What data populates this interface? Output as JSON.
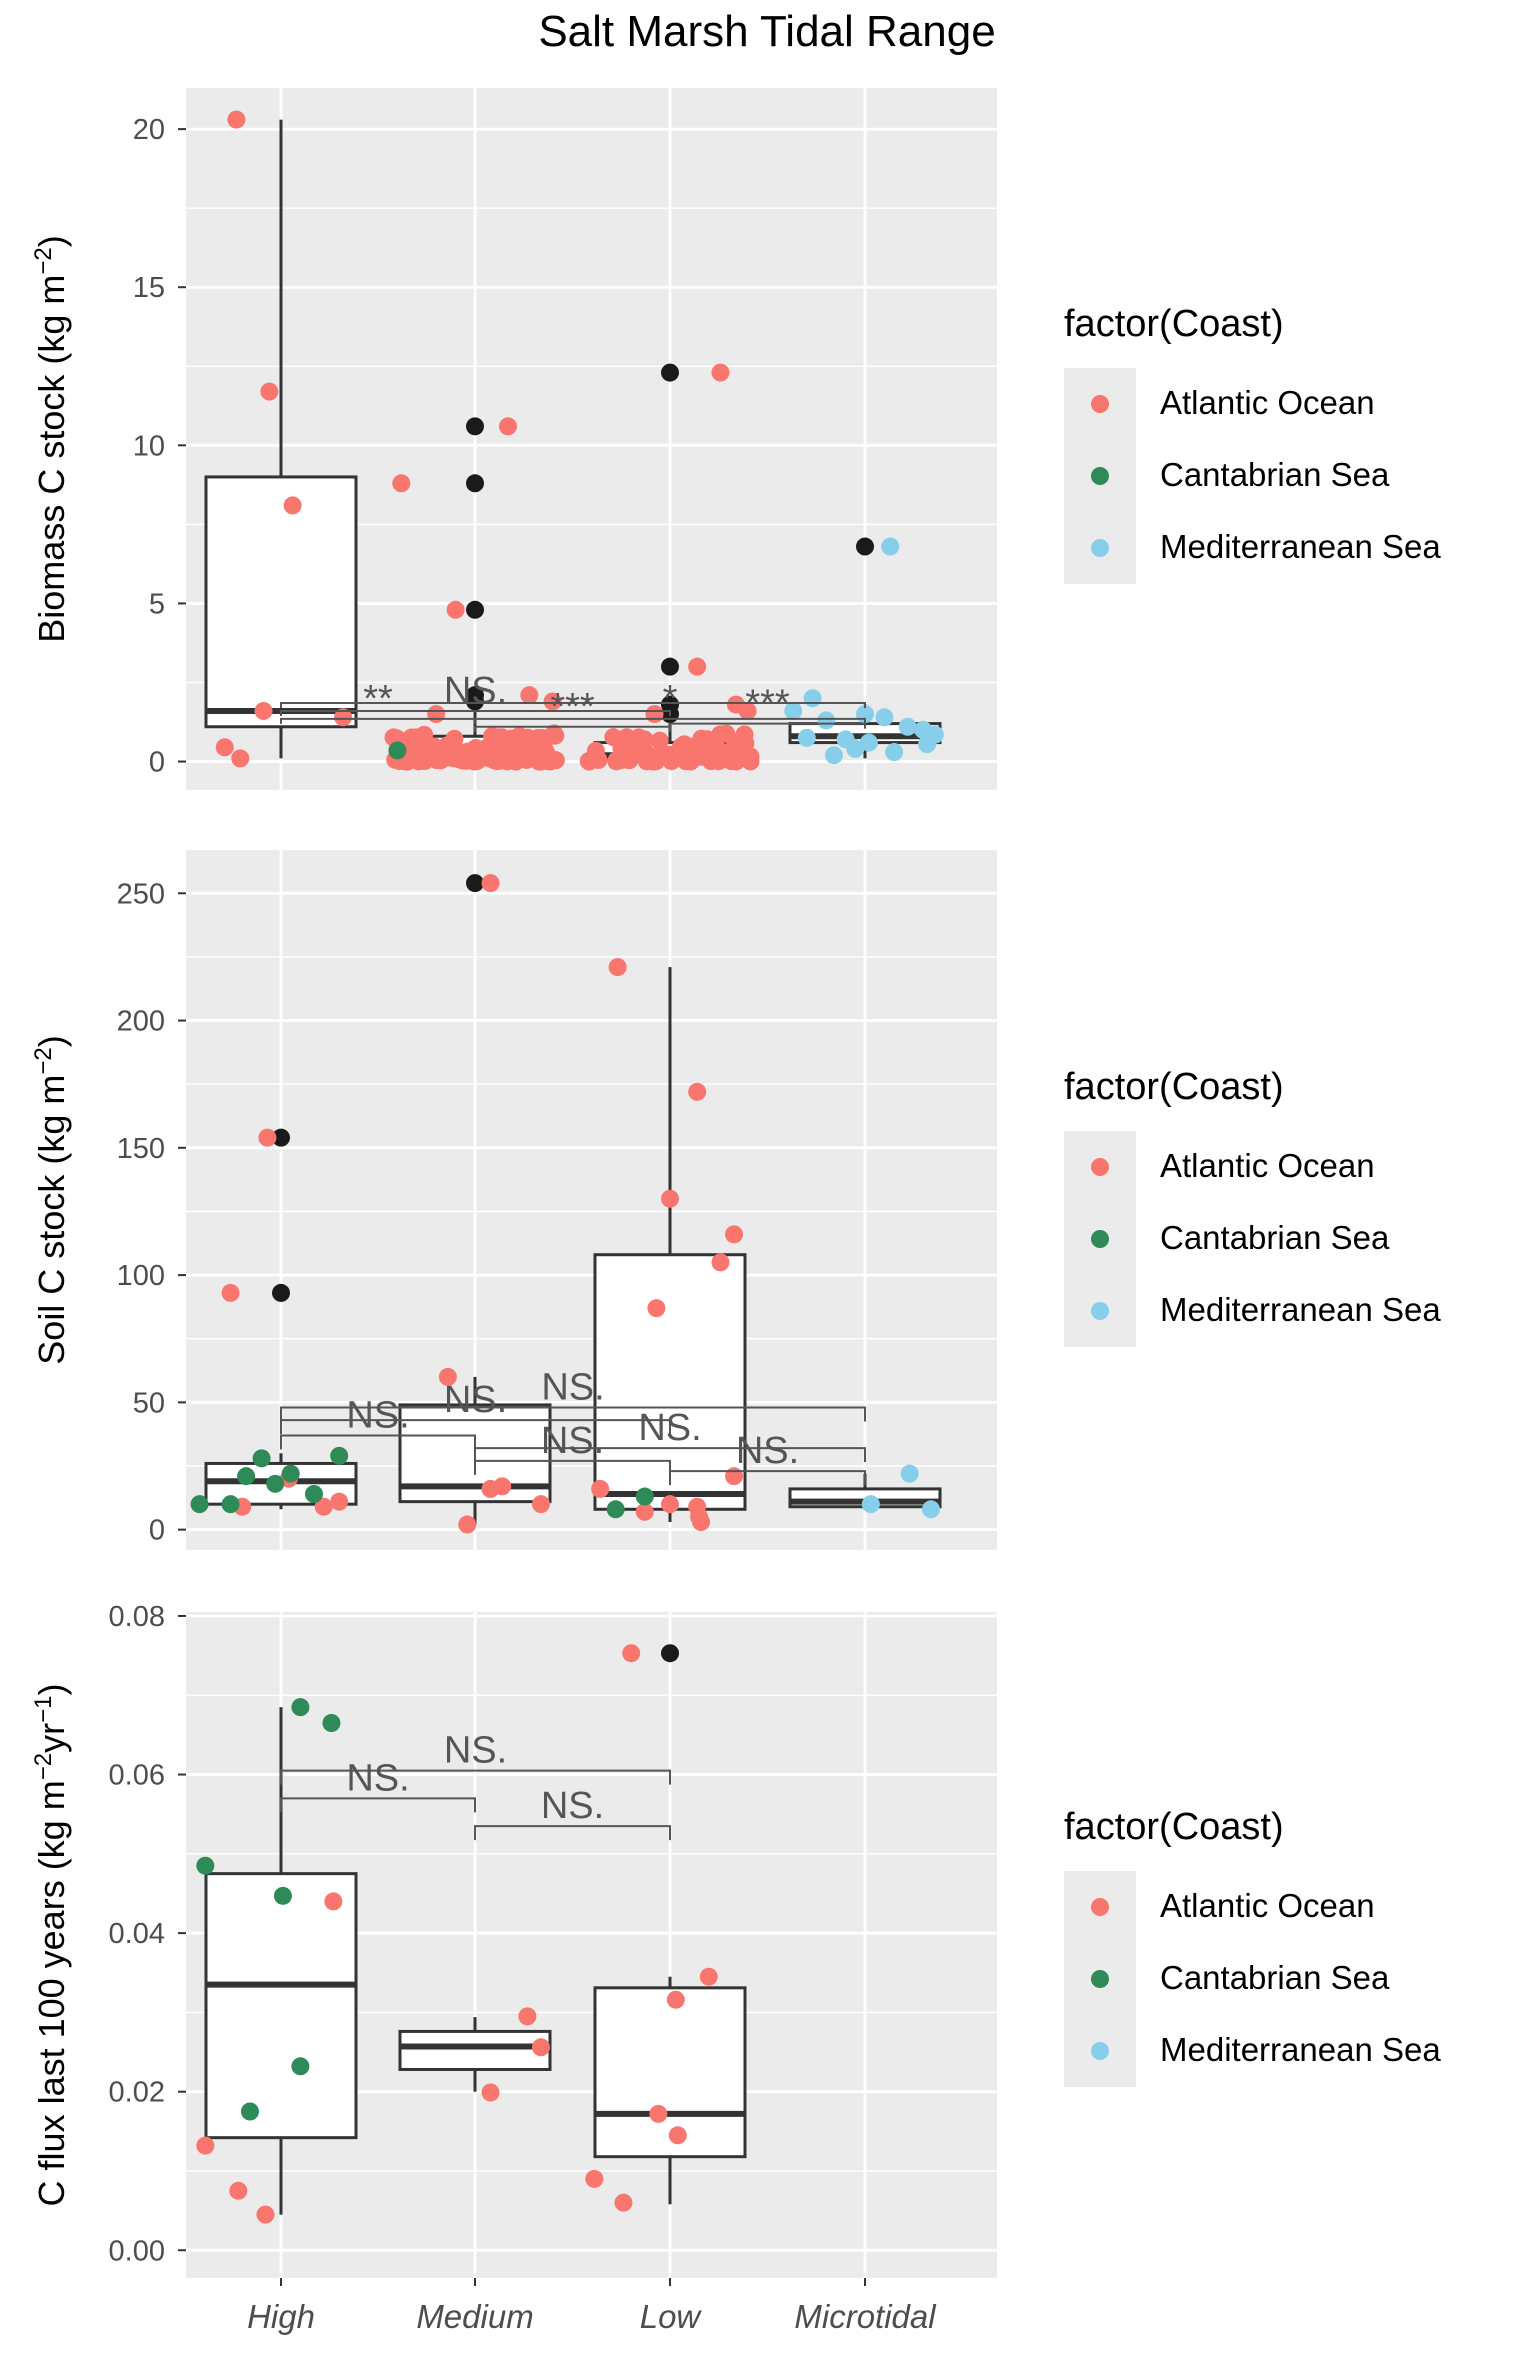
{
  "figure": {
    "title": "Salt Marsh Tidal Range",
    "x_categories": [
      "High",
      "Medium",
      "Low",
      "Microtidal"
    ]
  },
  "colors": {
    "Atlantic Ocean": "#F8766D",
    "Cantabrian Sea": "#2E8B57",
    "Mediterranean Sea": "#87CEEB",
    "outlier": "#1a1a1a",
    "panel_bg": "#EBEBEB",
    "grid": "#FFFFFF"
  },
  "legend": {
    "title": "factor(Coast)",
    "entries": [
      "Atlantic Ocean",
      "Cantabrian Sea",
      "Mediterranean Sea"
    ]
  },
  "chart_data": [
    {
      "type": "box",
      "title": "Salt Marsh Tidal Range",
      "ylabel": "Biomass C stock (kg m⁻²)",
      "ylabel_parts": [
        "Biomass C stock (kg m",
        "−2",
        ")"
      ],
      "ylim": [
        -0.9,
        21.3
      ],
      "yticks": [
        0,
        5,
        10,
        15,
        20
      ],
      "tick_labels": [
        "0",
        "5",
        "10",
        "15",
        "20"
      ],
      "categories": [
        "High",
        "Medium",
        "Low",
        "Microtidal"
      ],
      "boxes": [
        {
          "category": "High",
          "min": 0.1,
          "q1": 1.1,
          "median": 1.6,
          "q3": 9.0,
          "max": 20.3,
          "outliers": []
        },
        {
          "category": "Medium",
          "min": 0.0,
          "q1": 0.1,
          "median": 0.3,
          "q3": 0.8,
          "max": 1.8,
          "outliers": [
            2.1,
            1.9,
            4.8,
            8.8,
            10.6
          ]
        },
        {
          "category": "Low",
          "min": 0.0,
          "q1": 0.1,
          "median": 0.2,
          "q3": 0.6,
          "max": 1.3,
          "outliers": [
            1.5,
            1.8,
            3.0,
            12.3
          ]
        },
        {
          "category": "Microtidal",
          "min": 0.1,
          "q1": 0.6,
          "median": 0.8,
          "q3": 1.2,
          "max": 1.8,
          "outliers": [
            6.8
          ]
        }
      ],
      "points": [
        {
          "cat": "High",
          "off": -0.23,
          "y": 20.3,
          "coast": "Atlantic Ocean"
        },
        {
          "cat": "High",
          "off": -0.06,
          "y": 11.7,
          "coast": "Atlantic Ocean"
        },
        {
          "cat": "High",
          "off": 0.06,
          "y": 8.1,
          "coast": "Atlantic Ocean"
        },
        {
          "cat": "High",
          "off": -0.09,
          "y": 1.6,
          "coast": "Atlantic Ocean"
        },
        {
          "cat": "High",
          "off": 0.32,
          "y": 1.4,
          "coast": "Atlantic Ocean"
        },
        {
          "cat": "High",
          "off": -0.29,
          "y": 0.45,
          "coast": "Atlantic Ocean"
        },
        {
          "cat": "High",
          "off": -0.21,
          "y": 0.1,
          "coast": "Atlantic Ocean"
        },
        {
          "cat": "Medium",
          "off": -0.38,
          "y": 8.8,
          "coast": "Atlantic Ocean"
        },
        {
          "cat": "Medium",
          "off": -0.1,
          "y": 4.8,
          "coast": "Atlantic Ocean"
        },
        {
          "cat": "Medium",
          "off": 0.17,
          "y": 10.6,
          "coast": "Atlantic Ocean"
        },
        {
          "cat": "Medium",
          "off": 0.28,
          "y": 2.1,
          "coast": "Atlantic Ocean"
        },
        {
          "cat": "Medium",
          "off": 0.4,
          "y": 1.9,
          "coast": "Atlantic Ocean"
        },
        {
          "cat": "Medium",
          "off": -0.2,
          "y": 1.5,
          "coast": "Atlantic Ocean"
        },
        {
          "cat": "Medium",
          "off": -0.4,
          "y": 0.35,
          "coast": "Cantabrian Sea"
        },
        {
          "cat": "Low",
          "off": 0.26,
          "y": 12.3,
          "coast": "Atlantic Ocean"
        },
        {
          "cat": "Low",
          "off": 0.14,
          "y": 3.0,
          "coast": "Atlantic Ocean"
        },
        {
          "cat": "Low",
          "off": -0.08,
          "y": 1.5,
          "coast": "Atlantic Ocean"
        },
        {
          "cat": "Low",
          "off": 0.34,
          "y": 1.8,
          "coast": "Atlantic Ocean"
        },
        {
          "cat": "Low",
          "off": 0.4,
          "y": 1.6,
          "coast": "Atlantic Ocean"
        },
        {
          "cat": "Microtidal",
          "off": 0.13,
          "y": 6.8,
          "coast": "Mediterranean Sea"
        },
        {
          "cat": "Microtidal",
          "off": -0.37,
          "y": 1.6,
          "coast": "Mediterranean Sea"
        },
        {
          "cat": "Microtidal",
          "off": -0.27,
          "y": 2.0,
          "coast": "Mediterranean Sea"
        },
        {
          "cat": "Microtidal",
          "off": -0.2,
          "y": 1.3,
          "coast": "Mediterranean Sea"
        },
        {
          "cat": "Microtidal",
          "off": 0.0,
          "y": 1.5,
          "coast": "Mediterranean Sea"
        },
        {
          "cat": "Microtidal",
          "off": 0.1,
          "y": 1.4,
          "coast": "Mediterranean Sea"
        },
        {
          "cat": "Microtidal",
          "off": 0.22,
          "y": 1.1,
          "coast": "Mediterranean Sea"
        },
        {
          "cat": "Microtidal",
          "off": 0.3,
          "y": 1.0,
          "coast": "Mediterranean Sea"
        },
        {
          "cat": "Microtidal",
          "off": 0.36,
          "y": 0.85,
          "coast": "Mediterranean Sea"
        },
        {
          "cat": "Microtidal",
          "off": -0.1,
          "y": 0.7,
          "coast": "Mediterranean Sea"
        },
        {
          "cat": "Microtidal",
          "off": 0.02,
          "y": 0.6,
          "coast": "Mediterranean Sea"
        },
        {
          "cat": "Microtidal",
          "off": -0.3,
          "y": 0.75,
          "coast": "Mediterranean Sea"
        },
        {
          "cat": "Microtidal",
          "off": 0.15,
          "y": 0.3,
          "coast": "Mediterranean Sea"
        },
        {
          "cat": "Microtidal",
          "off": -0.16,
          "y": 0.2,
          "coast": "Mediterranean Sea"
        },
        {
          "cat": "Microtidal",
          "off": -0.05,
          "y": 0.4,
          "coast": "Mediterranean Sea"
        },
        {
          "cat": "Microtidal",
          "off": 0.32,
          "y": 0.55,
          "coast": "Mediterranean Sea"
        }
      ],
      "dense_clusters": [
        {
          "cat": "Medium",
          "coast": "Atlantic Ocean",
          "n": 110,
          "ymin": 0.0,
          "ymax": 0.9,
          "spread": 0.42
        },
        {
          "cat": "Low",
          "coast": "Atlantic Ocean",
          "n": 70,
          "ymin": 0.0,
          "ymax": 0.9,
          "spread": 0.42
        }
      ],
      "comparisons": [
        {
          "from": "High",
          "to": "Medium",
          "y": 1.35,
          "label": "**"
        },
        {
          "from": "High",
          "to": "Low",
          "y": 1.6,
          "label": "NS."
        },
        {
          "from": "High",
          "to": "Microtidal",
          "y": 1.85,
          "label": ""
        },
        {
          "from": "Medium",
          "to": "Low",
          "y": 1.1,
          "label": "***"
        },
        {
          "from": "Medium",
          "to": "Microtidal",
          "y": 1.35,
          "label": "*"
        },
        {
          "from": "Low",
          "to": "Microtidal",
          "y": 1.2,
          "label": "***"
        }
      ]
    },
    {
      "type": "box",
      "ylabel": "Soil C stock (kg m⁻²)",
      "ylabel_parts": [
        "Soil C stock (kg m",
        "−2",
        ")"
      ],
      "ylim": [
        -8,
        267
      ],
      "yticks": [
        0,
        50,
        100,
        150,
        200,
        250
      ],
      "tick_labels": [
        "0",
        "50",
        "100",
        "150",
        "200",
        "250"
      ],
      "categories": [
        "High",
        "Medium",
        "Low",
        "Microtidal"
      ],
      "boxes": [
        {
          "category": "High",
          "min": 8,
          "q1": 10,
          "median": 19,
          "q3": 26,
          "max": 30,
          "outliers": [
            93,
            154
          ]
        },
        {
          "category": "Medium",
          "min": 2,
          "q1": 11,
          "median": 17,
          "q3": 49,
          "max": 60,
          "outliers": [
            254
          ]
        },
        {
          "category": "Low",
          "min": 3,
          "q1": 8,
          "median": 14,
          "q3": 108,
          "max": 221,
          "outliers": []
        },
        {
          "category": "Microtidal",
          "min": 8,
          "q1": 9,
          "median": 11,
          "q3": 16,
          "max": 22,
          "outliers": []
        }
      ],
      "points": [
        {
          "cat": "High",
          "off": -0.26,
          "y": 93,
          "coast": "Atlantic Ocean"
        },
        {
          "cat": "High",
          "off": -0.07,
          "y": 154,
          "coast": "Atlantic Ocean"
        },
        {
          "cat": "High",
          "off": -0.2,
          "y": 9,
          "coast": "Atlantic Ocean"
        },
        {
          "cat": "High",
          "off": 0.04,
          "y": 20,
          "coast": "Atlantic Ocean"
        },
        {
          "cat": "High",
          "off": 0.22,
          "y": 9,
          "coast": "Atlantic Ocean"
        },
        {
          "cat": "High",
          "off": 0.3,
          "y": 11,
          "coast": "Atlantic Ocean"
        },
        {
          "cat": "High",
          "off": -0.42,
          "y": 10,
          "coast": "Cantabrian Sea"
        },
        {
          "cat": "High",
          "off": -0.26,
          "y": 10,
          "coast": "Cantabrian Sea"
        },
        {
          "cat": "High",
          "off": -0.18,
          "y": 21,
          "coast": "Cantabrian Sea"
        },
        {
          "cat": "High",
          "off": -0.1,
          "y": 28,
          "coast": "Cantabrian Sea"
        },
        {
          "cat": "High",
          "off": -0.03,
          "y": 18,
          "coast": "Cantabrian Sea"
        },
        {
          "cat": "High",
          "off": 0.05,
          "y": 22,
          "coast": "Cantabrian Sea"
        },
        {
          "cat": "High",
          "off": 0.17,
          "y": 14,
          "coast": "Cantabrian Sea"
        },
        {
          "cat": "High",
          "off": 0.3,
          "y": 29,
          "coast": "Cantabrian Sea"
        },
        {
          "cat": "Medium",
          "off": 0.08,
          "y": 254,
          "coast": "Atlantic Ocean"
        },
        {
          "cat": "Medium",
          "off": -0.14,
          "y": 60,
          "coast": "Atlantic Ocean"
        },
        {
          "cat": "Medium",
          "off": -0.04,
          "y": 2,
          "coast": "Atlantic Ocean"
        },
        {
          "cat": "Medium",
          "off": 0.08,
          "y": 16,
          "coast": "Atlantic Ocean"
        },
        {
          "cat": "Medium",
          "off": 0.14,
          "y": 17,
          "coast": "Atlantic Ocean"
        },
        {
          "cat": "Medium",
          "off": 0.34,
          "y": 10,
          "coast": "Atlantic Ocean"
        },
        {
          "cat": "Low",
          "off": -0.27,
          "y": 221,
          "coast": "Atlantic Ocean"
        },
        {
          "cat": "Low",
          "off": 0.14,
          "y": 172,
          "coast": "Atlantic Ocean"
        },
        {
          "cat": "Low",
          "off": 0.0,
          "y": 130,
          "coast": "Atlantic Ocean"
        },
        {
          "cat": "Low",
          "off": 0.33,
          "y": 116,
          "coast": "Atlantic Ocean"
        },
        {
          "cat": "Low",
          "off": 0.26,
          "y": 105,
          "coast": "Atlantic Ocean"
        },
        {
          "cat": "Low",
          "off": -0.07,
          "y": 87,
          "coast": "Atlantic Ocean"
        },
        {
          "cat": "Low",
          "off": -0.36,
          "y": 16,
          "coast": "Atlantic Ocean"
        },
        {
          "cat": "Low",
          "off": 0.33,
          "y": 21,
          "coast": "Atlantic Ocean"
        },
        {
          "cat": "Low",
          "off": -0.13,
          "y": 7,
          "coast": "Atlantic Ocean"
        },
        {
          "cat": "Low",
          "off": 0.0,
          "y": 10,
          "coast": "Atlantic Ocean"
        },
        {
          "cat": "Low",
          "off": 0.14,
          "y": 9,
          "coast": "Atlantic Ocean"
        },
        {
          "cat": "Low",
          "off": 0.15,
          "y": 5,
          "coast": "Atlantic Ocean"
        },
        {
          "cat": "Low",
          "off": 0.16,
          "y": 3,
          "coast": "Atlantic Ocean"
        },
        {
          "cat": "Low",
          "off": -0.28,
          "y": 8,
          "coast": "Cantabrian Sea"
        },
        {
          "cat": "Low",
          "off": -0.13,
          "y": 13,
          "coast": "Cantabrian Sea"
        },
        {
          "cat": "Microtidal",
          "off": 0.03,
          "y": 10,
          "coast": "Mediterranean Sea"
        },
        {
          "cat": "Microtidal",
          "off": 0.23,
          "y": 22,
          "coast": "Mediterranean Sea"
        },
        {
          "cat": "Microtidal",
          "off": 0.34,
          "y": 8,
          "coast": "Mediterranean Sea"
        }
      ],
      "dense_clusters": [],
      "comparisons": [
        {
          "from": "High",
          "to": "Medium",
          "y": 37,
          "label": "NS."
        },
        {
          "from": "High",
          "to": "Low",
          "y": 43,
          "label": "NS."
        },
        {
          "from": "High",
          "to": "Microtidal",
          "y": 48,
          "label": "NS."
        },
        {
          "from": "Medium",
          "to": "Low",
          "y": 27,
          "label": "NS."
        },
        {
          "from": "Medium",
          "to": "Microtidal",
          "y": 32,
          "label": "NS."
        },
        {
          "from": "Low",
          "to": "Microtidal",
          "y": 23,
          "label": "NS."
        }
      ]
    },
    {
      "type": "box",
      "ylabel": "C flux last 100 years (kg m⁻²yr⁻¹)",
      "ylabel_parts": [
        "C flux last 100 years (kg m",
        "−2",
        "yr",
        "−1",
        ")"
      ],
      "ylim": [
        -0.0035,
        0.0805
      ],
      "yticks": [
        0,
        0.02,
        0.04,
        0.06,
        0.08
      ],
      "tick_labels": [
        "0.00",
        "0.02",
        "0.04",
        "0.06",
        "0.08"
      ],
      "categories": [
        "High",
        "Medium",
        "Low",
        "Microtidal"
      ],
      "boxes": [
        {
          "category": "High",
          "min": 0.0045,
          "q1": 0.0142,
          "median": 0.0335,
          "q3": 0.0475,
          "max": 0.0685,
          "outliers": []
        },
        {
          "category": "Medium",
          "min": 0.02,
          "q1": 0.0228,
          "median": 0.0257,
          "q3": 0.0276,
          "max": 0.0294,
          "outliers": []
        },
        {
          "category": "Low",
          "min": 0.0058,
          "q1": 0.0118,
          "median": 0.0172,
          "q3": 0.0331,
          "max": 0.0345,
          "outliers": [
            0.0753
          ]
        },
        {
          "category": "Microtidal",
          "outliers": []
        }
      ],
      "points": [
        {
          "cat": "High",
          "off": -0.39,
          "y": 0.0485,
          "coast": "Cantabrian Sea"
        },
        {
          "cat": "High",
          "off": 0.1,
          "y": 0.0685,
          "coast": "Cantabrian Sea"
        },
        {
          "cat": "High",
          "off": 0.26,
          "y": 0.0665,
          "coast": "Cantabrian Sea"
        },
        {
          "cat": "High",
          "off": 0.01,
          "y": 0.0447,
          "coast": "Cantabrian Sea"
        },
        {
          "cat": "High",
          "off": 0.1,
          "y": 0.0232,
          "coast": "Cantabrian Sea"
        },
        {
          "cat": "High",
          "off": -0.16,
          "y": 0.0175,
          "coast": "Cantabrian Sea"
        },
        {
          "cat": "High",
          "off": 0.27,
          "y": 0.044,
          "coast": "Atlantic Ocean"
        },
        {
          "cat": "High",
          "off": -0.39,
          "y": 0.0132,
          "coast": "Atlantic Ocean"
        },
        {
          "cat": "High",
          "off": -0.22,
          "y": 0.0075,
          "coast": "Atlantic Ocean"
        },
        {
          "cat": "High",
          "off": -0.08,
          "y": 0.0045,
          "coast": "Atlantic Ocean"
        },
        {
          "cat": "Medium",
          "off": 0.27,
          "y": 0.0295,
          "coast": "Atlantic Ocean"
        },
        {
          "cat": "Medium",
          "off": 0.34,
          "y": 0.0256,
          "coast": "Atlantic Ocean"
        },
        {
          "cat": "Medium",
          "off": 0.08,
          "y": 0.0199,
          "coast": "Atlantic Ocean"
        },
        {
          "cat": "Low",
          "off": -0.2,
          "y": 0.0753,
          "coast": "Atlantic Ocean"
        },
        {
          "cat": "Low",
          "off": 0.2,
          "y": 0.0345,
          "coast": "Atlantic Ocean"
        },
        {
          "cat": "Low",
          "off": 0.03,
          "y": 0.0316,
          "coast": "Atlantic Ocean"
        },
        {
          "cat": "Low",
          "off": -0.06,
          "y": 0.0172,
          "coast": "Atlantic Ocean"
        },
        {
          "cat": "Low",
          "off": 0.04,
          "y": 0.0145,
          "coast": "Atlantic Ocean"
        },
        {
          "cat": "Low",
          "off": -0.39,
          "y": 0.009,
          "coast": "Atlantic Ocean"
        },
        {
          "cat": "Low",
          "off": -0.24,
          "y": 0.006,
          "coast": "Atlantic Ocean"
        }
      ],
      "dense_clusters": [],
      "comparisons": [
        {
          "from": "High",
          "to": "Medium",
          "y": 0.057,
          "label": "NS."
        },
        {
          "from": "High",
          "to": "Low",
          "y": 0.0605,
          "label": "NS."
        },
        {
          "from": "Medium",
          "to": "Low",
          "y": 0.0535,
          "label": "NS."
        }
      ]
    }
  ]
}
